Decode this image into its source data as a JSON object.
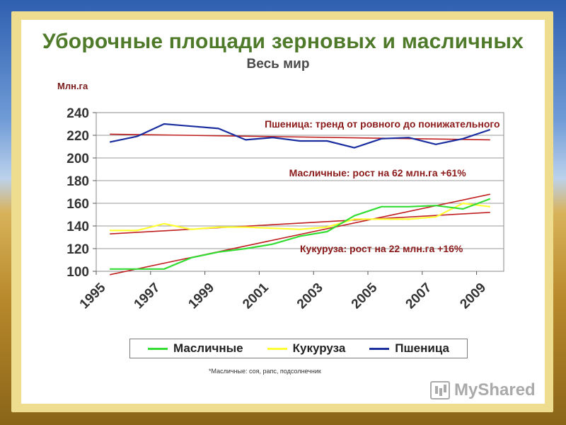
{
  "title": "Уборочные площади зерновых и масличных",
  "subtitle": "Весь мир",
  "unit": "Млн.га",
  "footnote": "*Масличные: соя, рапс, подсолнечник",
  "watermark": "MyShared",
  "chart_data": {
    "type": "line",
    "ylim": [
      100,
      240
    ],
    "xlim": [
      1995,
      2010
    ],
    "yticks": [
      100,
      120,
      140,
      160,
      180,
      200,
      220,
      240
    ],
    "xticks": [
      "1995",
      "1997",
      "1999",
      "2001",
      "2003",
      "2005",
      "2007",
      "2009"
    ],
    "grid": "horizontal",
    "legend_position": "bottom",
    "series": [
      {
        "name": "Масличные",
        "color": "#33dd33",
        "points": [
          [
            1995.5,
            102
          ],
          [
            1996.5,
            102
          ],
          [
            1997.5,
            102
          ],
          [
            1998.5,
            112
          ],
          [
            1999.5,
            117
          ],
          [
            2000.5,
            120
          ],
          [
            2001.5,
            124
          ],
          [
            2002.5,
            131
          ],
          [
            2003.5,
            135
          ],
          [
            2004.5,
            149
          ],
          [
            2005.5,
            157
          ],
          [
            2006.5,
            157
          ],
          [
            2007.5,
            158
          ],
          [
            2008.5,
            155
          ],
          [
            2009.5,
            164
          ]
        ]
      },
      {
        "name": "Кукуруза",
        "color": "#ffff33",
        "points": [
          [
            1995.5,
            136
          ],
          [
            1996.5,
            136
          ],
          [
            1997.5,
            142
          ],
          [
            1998.5,
            137
          ],
          [
            1999.5,
            139
          ],
          [
            2000.5,
            139
          ],
          [
            2001.5,
            138
          ],
          [
            2002.5,
            137
          ],
          [
            2003.5,
            139
          ],
          [
            2004.5,
            146
          ],
          [
            2005.5,
            146
          ],
          [
            2006.5,
            146
          ],
          [
            2007.5,
            148
          ],
          [
            2008.5,
            160
          ],
          [
            2009.5,
            157
          ]
        ]
      },
      {
        "name": "Пшеница",
        "color": "#1a2ea0",
        "points": [
          [
            1995.5,
            214
          ],
          [
            1996.5,
            219
          ],
          [
            1997.5,
            230
          ],
          [
            1998.5,
            228
          ],
          [
            1999.5,
            226
          ],
          [
            2000.5,
            216
          ],
          [
            2001.5,
            218
          ],
          [
            2002.5,
            215
          ],
          [
            2003.5,
            215
          ],
          [
            2004.5,
            209
          ],
          [
            2005.5,
            217
          ],
          [
            2006.5,
            218
          ],
          [
            2007.5,
            212
          ],
          [
            2008.5,
            217
          ],
          [
            2009.5,
            225
          ]
        ]
      }
    ],
    "trendlines": [
      {
        "color": "#c02020",
        "from": [
          1995.5,
          221
        ],
        "to": [
          2009.5,
          216
        ]
      },
      {
        "color": "#c02020",
        "from": [
          1995.5,
          133
        ],
        "to": [
          2009.5,
          152
        ]
      },
      {
        "color": "#c02020",
        "from": [
          1995.5,
          97
        ],
        "to": [
          2009.5,
          168
        ]
      }
    ],
    "annotations": [
      {
        "text": "Пшеница: тренд от ровного до понижательного",
        "x": 2001.2,
        "y": 230
      },
      {
        "text": "Масличные: рост на 62 млн.га  +61%",
        "x": 2002.1,
        "y": 187
      },
      {
        "text": "Кукуруза: рост на 22 млн.га  +16%",
        "x": 2002.5,
        "y": 120
      }
    ]
  }
}
